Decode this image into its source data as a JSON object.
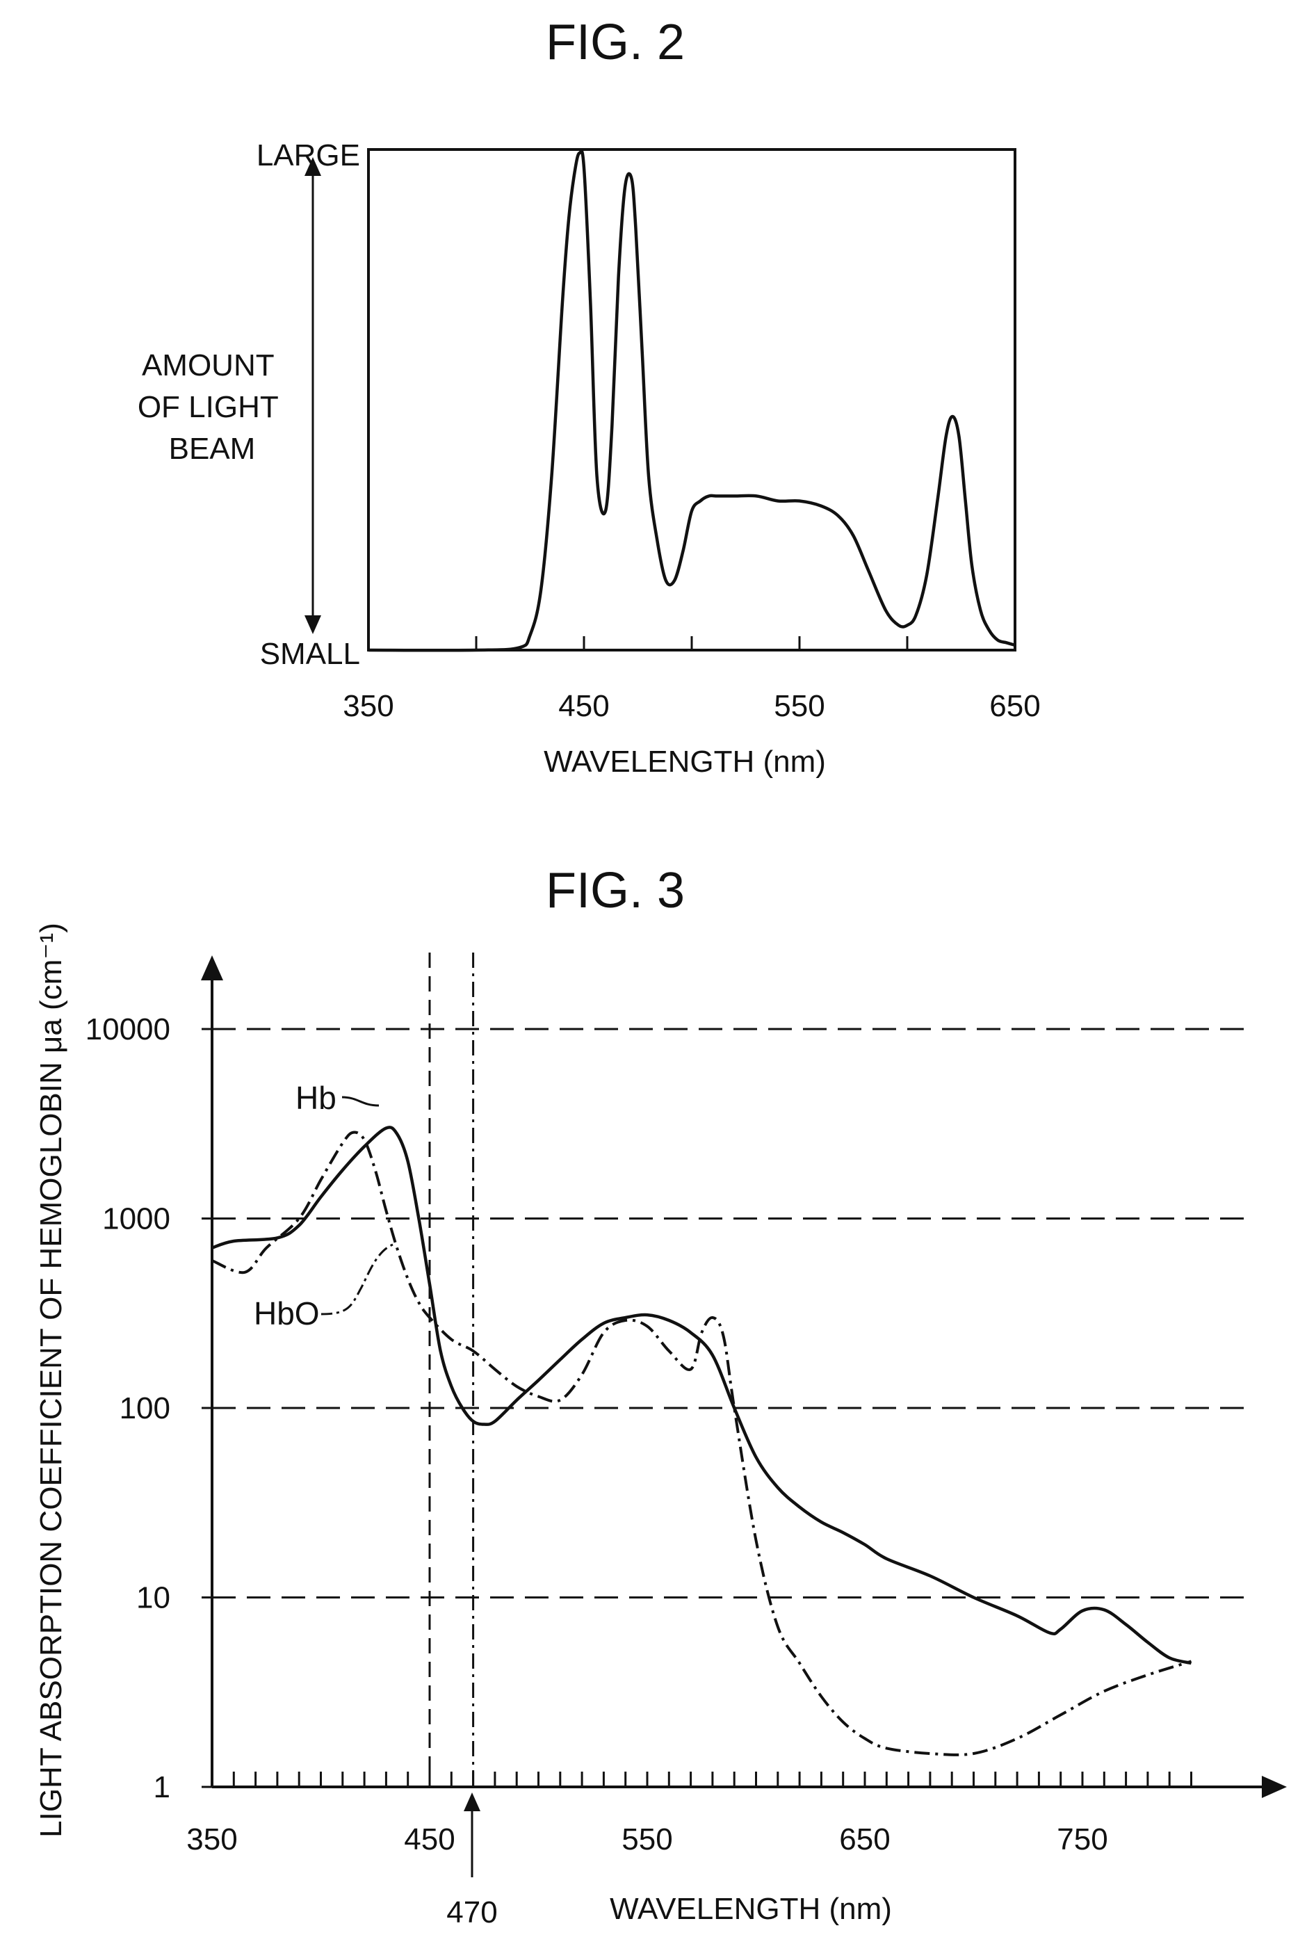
{
  "chart_data": [
    {
      "type": "line",
      "title": "FIG. 2",
      "xlabel": "WAVELENGTH (nm)",
      "ylabel": "AMOUNT OF LIGHT BEAM",
      "ylabel_lines": [
        "AMOUNT",
        "OF LIGHT",
        "BEAM"
      ],
      "y_top_label": "LARGE",
      "y_bottom_label": "SMALL",
      "xlim": [
        350,
        650
      ],
      "ylim": [
        0,
        1
      ],
      "x_ticks": [
        350,
        400,
        450,
        500,
        550,
        600,
        650
      ],
      "x_tick_labels": [
        "350",
        "450",
        "550",
        "650"
      ],
      "grid": false,
      "series": [
        {
          "x": [
            350,
            400,
            420,
            425,
            430,
            435,
            440,
            443,
            446,
            448,
            450,
            453,
            456,
            460,
            463,
            466,
            469,
            472,
            474,
            477,
            480,
            484,
            488,
            492,
            496,
            500,
            504,
            508,
            512,
            520,
            530,
            540,
            550,
            560,
            568,
            575,
            582,
            590,
            596,
            600,
            604,
            609,
            614,
            618,
            621,
            624,
            627,
            630,
            634,
            638,
            642,
            646,
            650
          ],
          "y": [
            0,
            0,
            0.005,
            0.03,
            0.12,
            0.35,
            0.7,
            0.87,
            0.97,
            1.0,
            0.97,
            0.7,
            0.35,
            0.28,
            0.45,
            0.75,
            0.93,
            0.95,
            0.85,
            0.6,
            0.35,
            0.22,
            0.14,
            0.14,
            0.2,
            0.28,
            0.3,
            0.31,
            0.31,
            0.31,
            0.31,
            0.3,
            0.3,
            0.29,
            0.27,
            0.23,
            0.16,
            0.08,
            0.05,
            0.05,
            0.07,
            0.15,
            0.3,
            0.43,
            0.47,
            0.43,
            0.3,
            0.17,
            0.08,
            0.04,
            0.02,
            0.015,
            0.01
          ]
        }
      ]
    },
    {
      "type": "line",
      "title": "FIG. 3",
      "xlabel": "WAVELENGTH (nm)",
      "ylabel": "LIGHT ABSORPTION COEFFICIENT OF HEMOGLOBIN μa (cm⁻¹)",
      "yscale": "log",
      "xlim": [
        350,
        820
      ],
      "ylim": [
        1,
        10000
      ],
      "x_tick_labels": [
        350,
        450,
        550,
        650,
        750
      ],
      "y_tick_labels": [
        "1",
        "10",
        "100",
        "1000",
        "10000"
      ],
      "y_tick_values": [
        1,
        10,
        100,
        1000,
        10000
      ],
      "grid": "horizontal-dashed",
      "reference_lines": [
        {
          "x": 450,
          "style": "dashed"
        },
        {
          "x": 470,
          "style": "dash-dot",
          "label": "470"
        }
      ],
      "series": [
        {
          "name": "Hb",
          "style": "solid",
          "x": [
            350,
            360,
            380,
            390,
            400,
            410,
            420,
            430,
            435,
            440,
            445,
            450,
            455,
            460,
            465,
            470,
            475,
            480,
            490,
            500,
            510,
            520,
            530,
            540,
            550,
            560,
            570,
            580,
            590,
            600,
            610,
            620,
            630,
            640,
            650,
            660,
            680,
            700,
            720,
            735,
            740,
            750,
            760,
            770,
            780,
            790,
            800
          ],
          "y": [
            700,
            760,
            790,
            920,
            1300,
            1800,
            2400,
            3000,
            2800,
            2000,
            1000,
            450,
            200,
            130,
            100,
            85,
            82,
            85,
            110,
            140,
            180,
            230,
            280,
            300,
            310,
            290,
            250,
            190,
            100,
            55,
            38,
            30,
            25,
            22,
            19,
            16,
            13,
            10,
            8,
            6.5,
            6.8,
            8.5,
            8.6,
            7.2,
            5.8,
            4.8,
            4.5
          ]
        },
        {
          "name": "HbO",
          "style": "dash-dot",
          "x": [
            350,
            365,
            375,
            390,
            400,
            410,
            415,
            420,
            425,
            430,
            435,
            440,
            445,
            450,
            460,
            470,
            480,
            490,
            500,
            510,
            520,
            530,
            540,
            550,
            560,
            570,
            575,
            580,
            585,
            590,
            600,
            610,
            620,
            630,
            640,
            650,
            660,
            680,
            700,
            720,
            740,
            760,
            780,
            800
          ],
          "y": [
            600,
            520,
            700,
            1000,
            1600,
            2500,
            2850,
            2600,
            1800,
            1100,
            700,
            480,
            360,
            300,
            230,
            200,
            160,
            130,
            115,
            110,
            150,
            250,
            290,
            270,
            200,
            160,
            250,
            300,
            240,
            100,
            20,
            7,
            4.5,
            3,
            2.2,
            1.8,
            1.6,
            1.5,
            1.5,
            1.8,
            2.4,
            3.2,
            3.9,
            4.6
          ]
        }
      ]
    }
  ]
}
